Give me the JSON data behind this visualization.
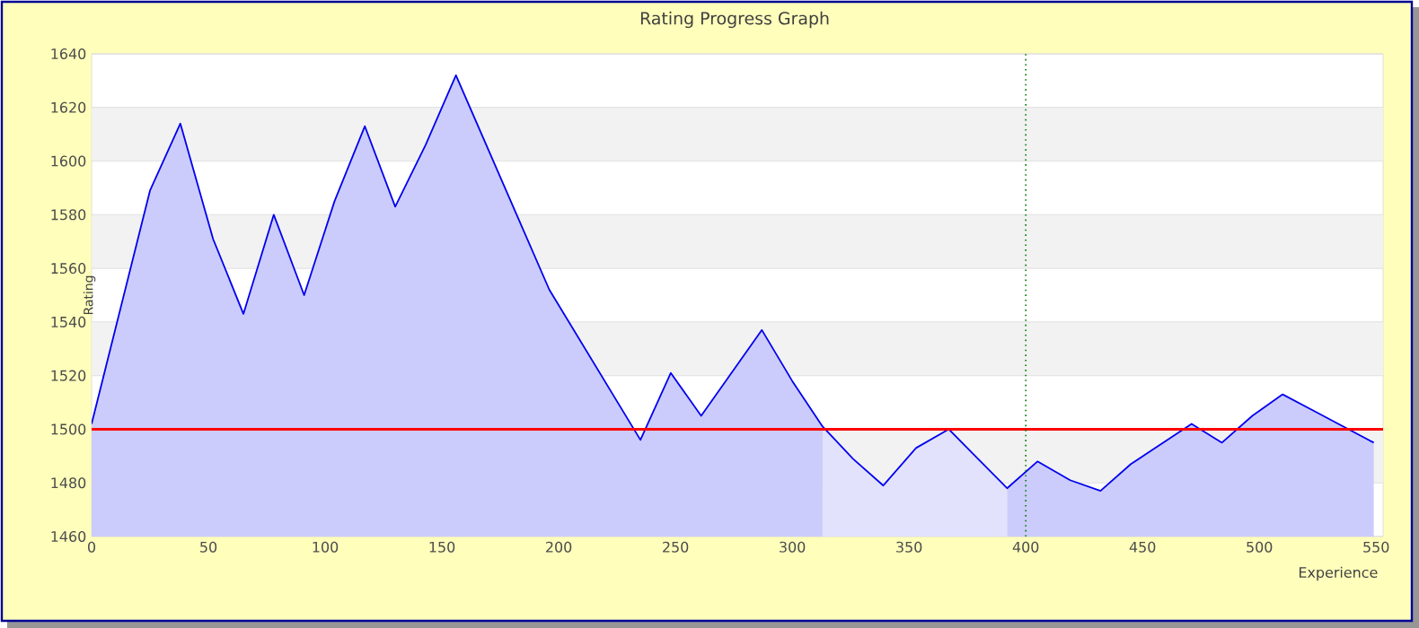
{
  "chart_data": {
    "type": "area",
    "title": "Rating Progress Graph",
    "xlabel": "Experience",
    "ylabel": "Rating",
    "series": [
      {
        "color": "#0000ee",
        "x": [
          0,
          25,
          38,
          52,
          65,
          78,
          91,
          104,
          117,
          130,
          143,
          156,
          196,
          235,
          248,
          261,
          287,
          300,
          313,
          326,
          339,
          353,
          367,
          392,
          405,
          419,
          432,
          445,
          471,
          484,
          497,
          510,
          523,
          549
        ],
        "values": [
          1502,
          1589,
          1614,
          1571,
          1543,
          1580,
          1550,
          1585,
          1613,
          1583,
          1606,
          1632,
          1552,
          1496,
          1521,
          1505,
          1537,
          1518,
          1501,
          1489,
          1479,
          1493,
          1500,
          1478,
          1488,
          1481,
          1477,
          1487,
          1502,
          1495,
          1505,
          1513,
          1507,
          1495
        ]
      }
    ],
    "xlim": [
      0,
      553
    ],
    "xticks": [
      0,
      50,
      100,
      150,
      200,
      250,
      300,
      350,
      400,
      450,
      500,
      550
    ],
    "ylim": [
      1460,
      1640
    ],
    "yticks": [
      1460,
      1480,
      1500,
      1520,
      1540,
      1560,
      1580,
      1600,
      1620,
      1640
    ],
    "grid": "y",
    "ref_lines": [
      {
        "axis": "y",
        "value": 1500,
        "color": "#ff0000",
        "line_style": "solid"
      },
      {
        "axis": "x",
        "value": 400,
        "color": "#007700",
        "line_style": "dotted"
      }
    ],
    "bands": [
      {
        "axis": "x",
        "from": 313,
        "to": 392,
        "color": "#e2e2fc"
      }
    ]
  }
}
